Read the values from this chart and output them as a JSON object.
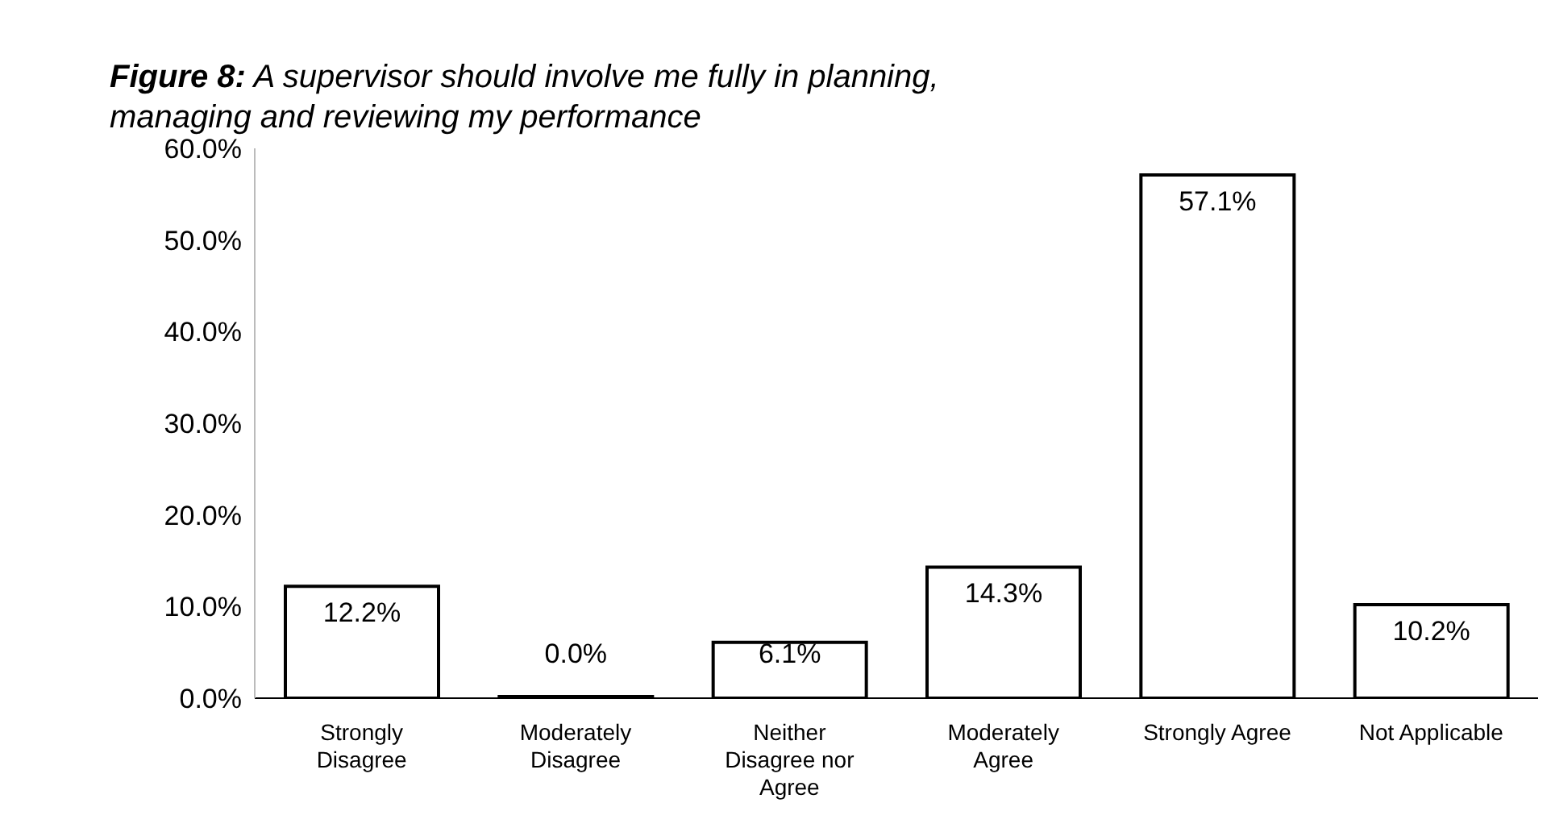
{
  "chart_data": {
    "type": "bar",
    "title": "Figure 8: A supervisor should involve me fully in planning, managing and reviewing my performance",
    "categories": [
      "Strongly Disagree",
      "Moderately Disagree",
      "Neither Disagree nor Agree",
      "Moderately Agree",
      "Strongly Agree",
      "Not Applicable"
    ],
    "values": [
      12.2,
      0,
      6.1,
      14.3,
      57.1,
      10.2
    ],
    "value_labels": [
      "12.2%",
      "0.0%",
      "6.1%",
      "14.3%",
      "57.1%",
      "10.2%"
    ],
    "color": "#ffffff",
    "ylim": [
      0,
      60
    ],
    "yticks": [
      {
        "value": 0,
        "label": "0.0%"
      },
      {
        "value": 10,
        "label": "10.0%"
      },
      {
        "value": 20,
        "label": "20.0%"
      },
      {
        "value": 30,
        "label": "30.0%"
      },
      {
        "value": 40,
        "label": "40.0%"
      },
      {
        "value": 50,
        "label": "50.0%"
      },
      {
        "value": 60,
        "label": "60.0%"
      }
    ],
    "grid": false,
    "legend": false
  }
}
